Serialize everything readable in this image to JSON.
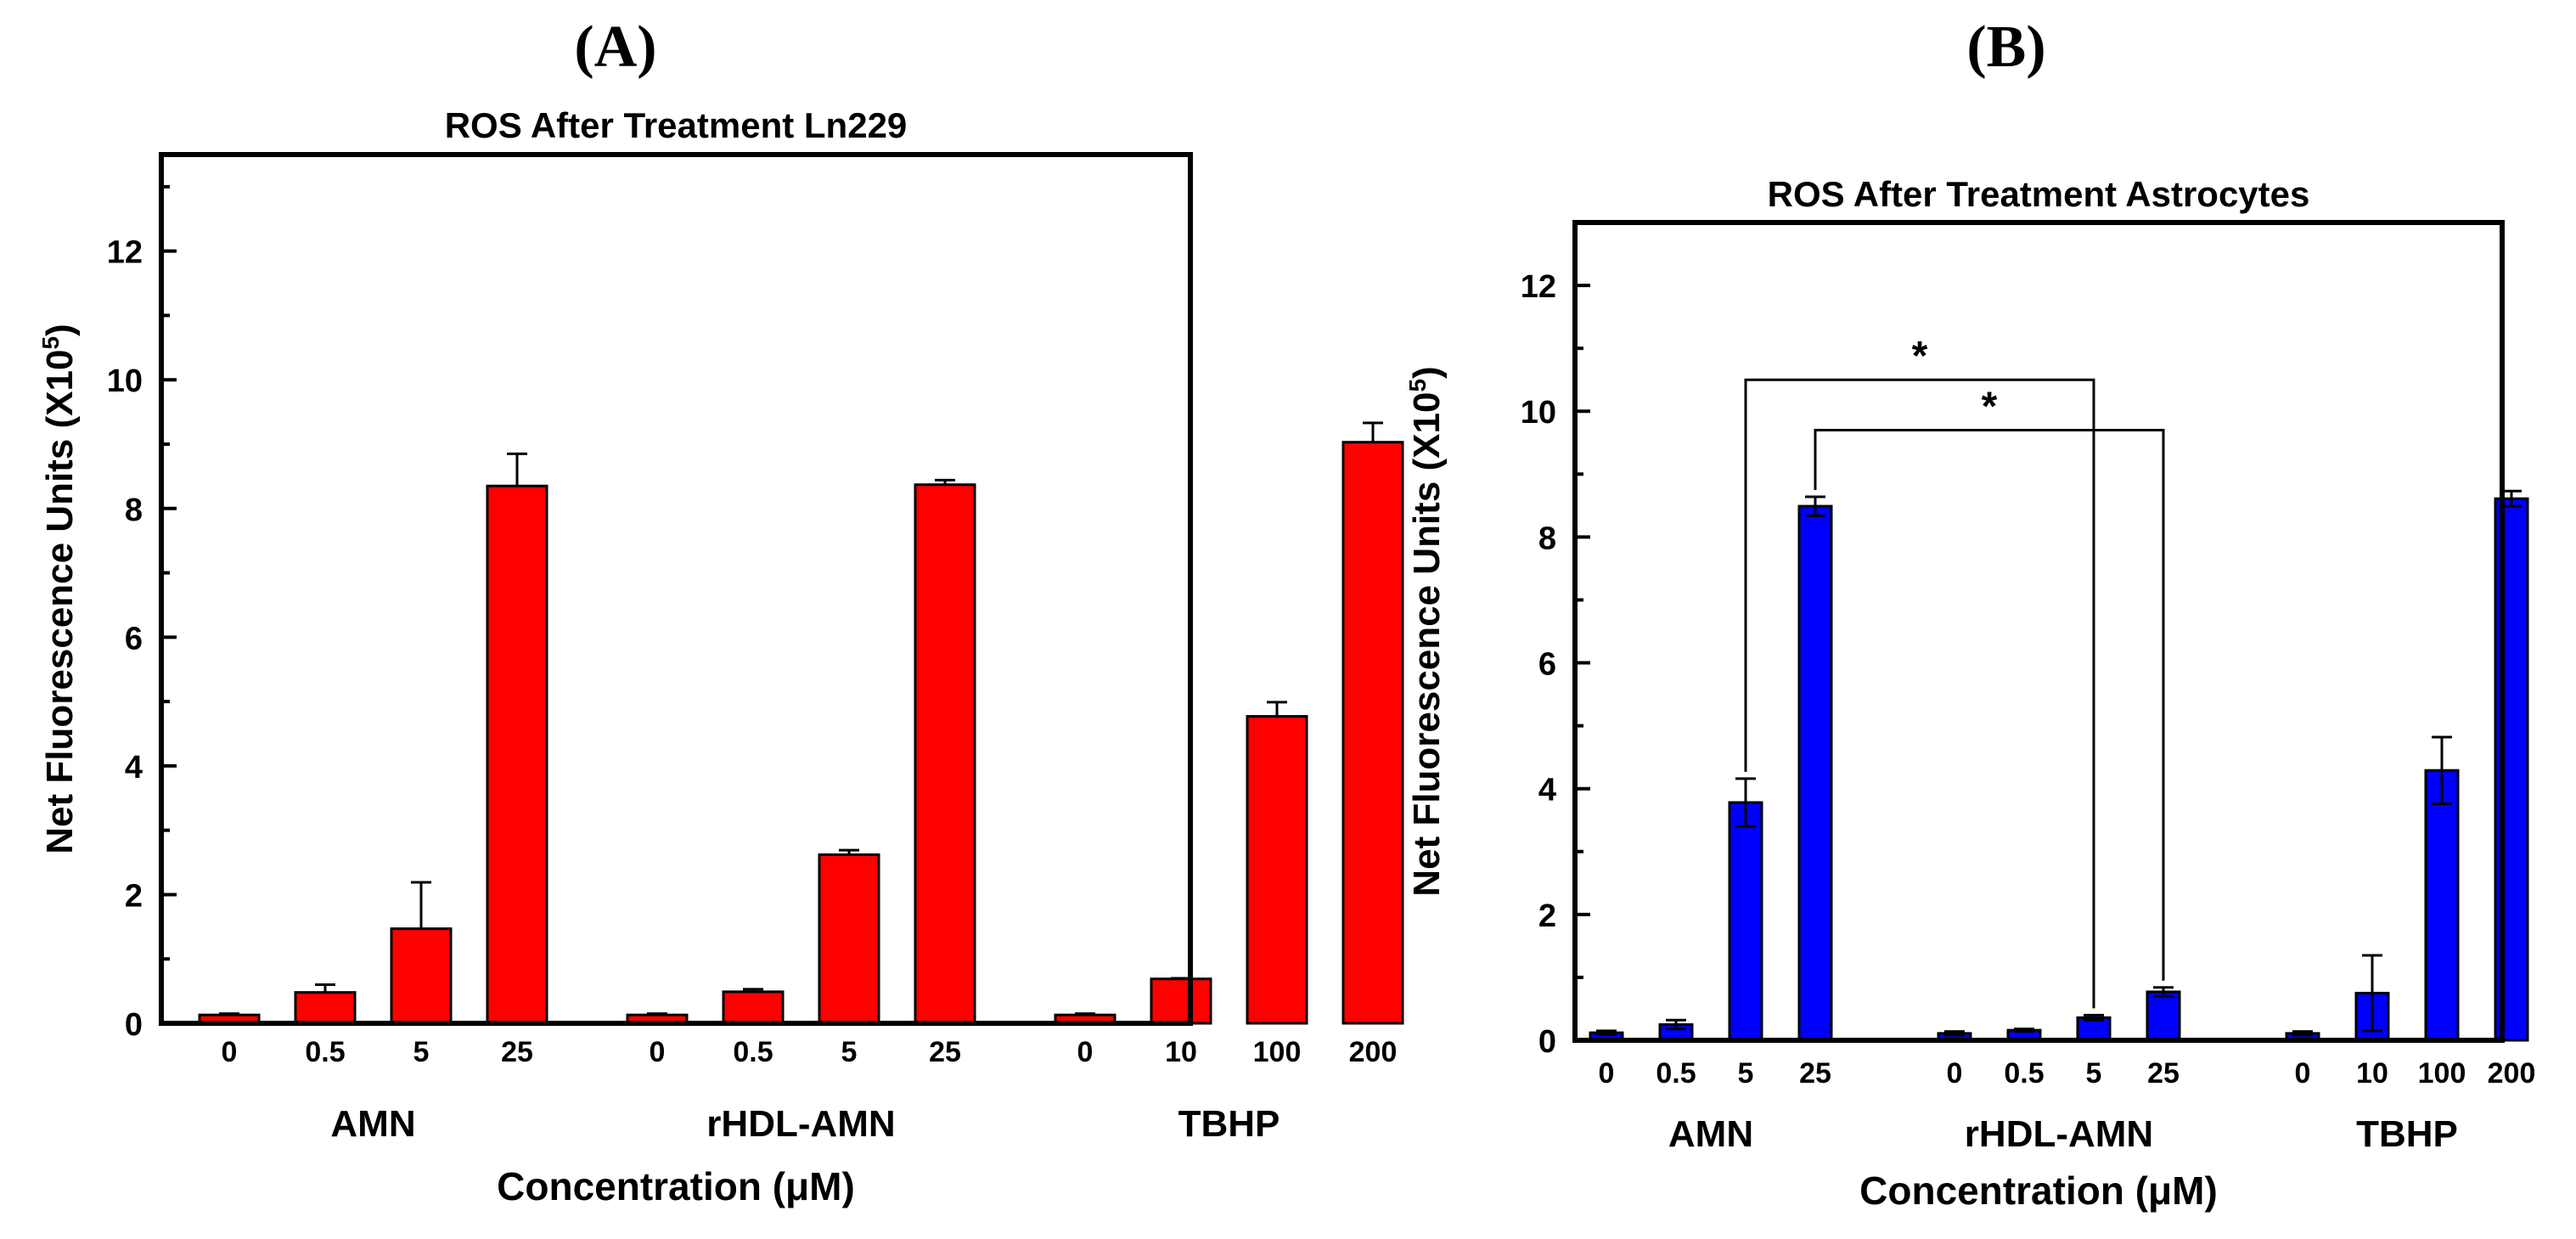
{
  "chart_data": [
    {
      "panel_label": "(A)",
      "type": "bar",
      "title": "ROS After Treatment Ln229",
      "ylabel": "Net Fluorescence Units (X10",
      "ylabel_sup": "5",
      "ylabel_close": ")",
      "xlabel": "Concentration (μM)",
      "ylim": [
        0,
        13.5
      ],
      "yticks": [
        0,
        2,
        4,
        6,
        8,
        10,
        12
      ],
      "bar_color": "#ff0000",
      "groups": [
        {
          "name": "AMN",
          "categories": [
            "0",
            "0.5",
            "5",
            "25"
          ],
          "values": [
            0.13,
            0.48,
            1.47,
            8.35
          ],
          "errors": [
            0.02,
            0.12,
            0.72,
            0.5
          ]
        },
        {
          "name": "rHDL-AMN",
          "categories": [
            "0",
            "0.5",
            "5",
            "25"
          ],
          "values": [
            0.13,
            0.49,
            2.62,
            8.37
          ],
          "errors": [
            0.02,
            0.04,
            0.07,
            0.07
          ]
        },
        {
          "name": "TBHP",
          "categories": [
            "0",
            "10",
            "100",
            "200"
          ],
          "values": [
            0.13,
            0.69,
            4.77,
            9.03
          ],
          "errors": [
            0.02,
            0.01,
            0.22,
            0.3
          ]
        }
      ],
      "annotations": []
    },
    {
      "panel_label": "(B)",
      "type": "bar",
      "title": "ROS After Treatment Astrocytes",
      "ylabel": "Net Fluorescence Units (X10",
      "ylabel_sup": "5",
      "ylabel_close": ")",
      "xlabel": "Concentration (μM)",
      "ylim": [
        0,
        13
      ],
      "yticks": [
        0,
        2,
        4,
        6,
        8,
        10,
        12
      ],
      "bar_color": "#0000ff",
      "groups": [
        {
          "name": "AMN",
          "categories": [
            "0",
            "0.5",
            "5",
            "25"
          ],
          "values": [
            0.12,
            0.25,
            3.78,
            8.49
          ],
          "errors": [
            0.03,
            0.07,
            0.38,
            0.15
          ]
        },
        {
          "name": "rHDL-AMN",
          "categories": [
            "0",
            "0.5",
            "5",
            "25"
          ],
          "values": [
            0.11,
            0.16,
            0.36,
            0.77
          ],
          "errors": [
            0.03,
            0.02,
            0.04,
            0.07
          ]
        },
        {
          "name": "TBHP",
          "categories": [
            "0",
            "10",
            "100",
            "200"
          ],
          "values": [
            0.11,
            0.75,
            4.29,
            8.61
          ],
          "errors": [
            0.03,
            0.6,
            0.53,
            0.12
          ]
        }
      ],
      "annotations": [
        {
          "label": "*",
          "from": [
            0,
            2
          ],
          "to": [
            1,
            2
          ],
          "y": 10.5
        },
        {
          "label": "*",
          "from": [
            0,
            3
          ],
          "to": [
            1,
            3
          ],
          "y": 9.7
        }
      ]
    }
  ]
}
